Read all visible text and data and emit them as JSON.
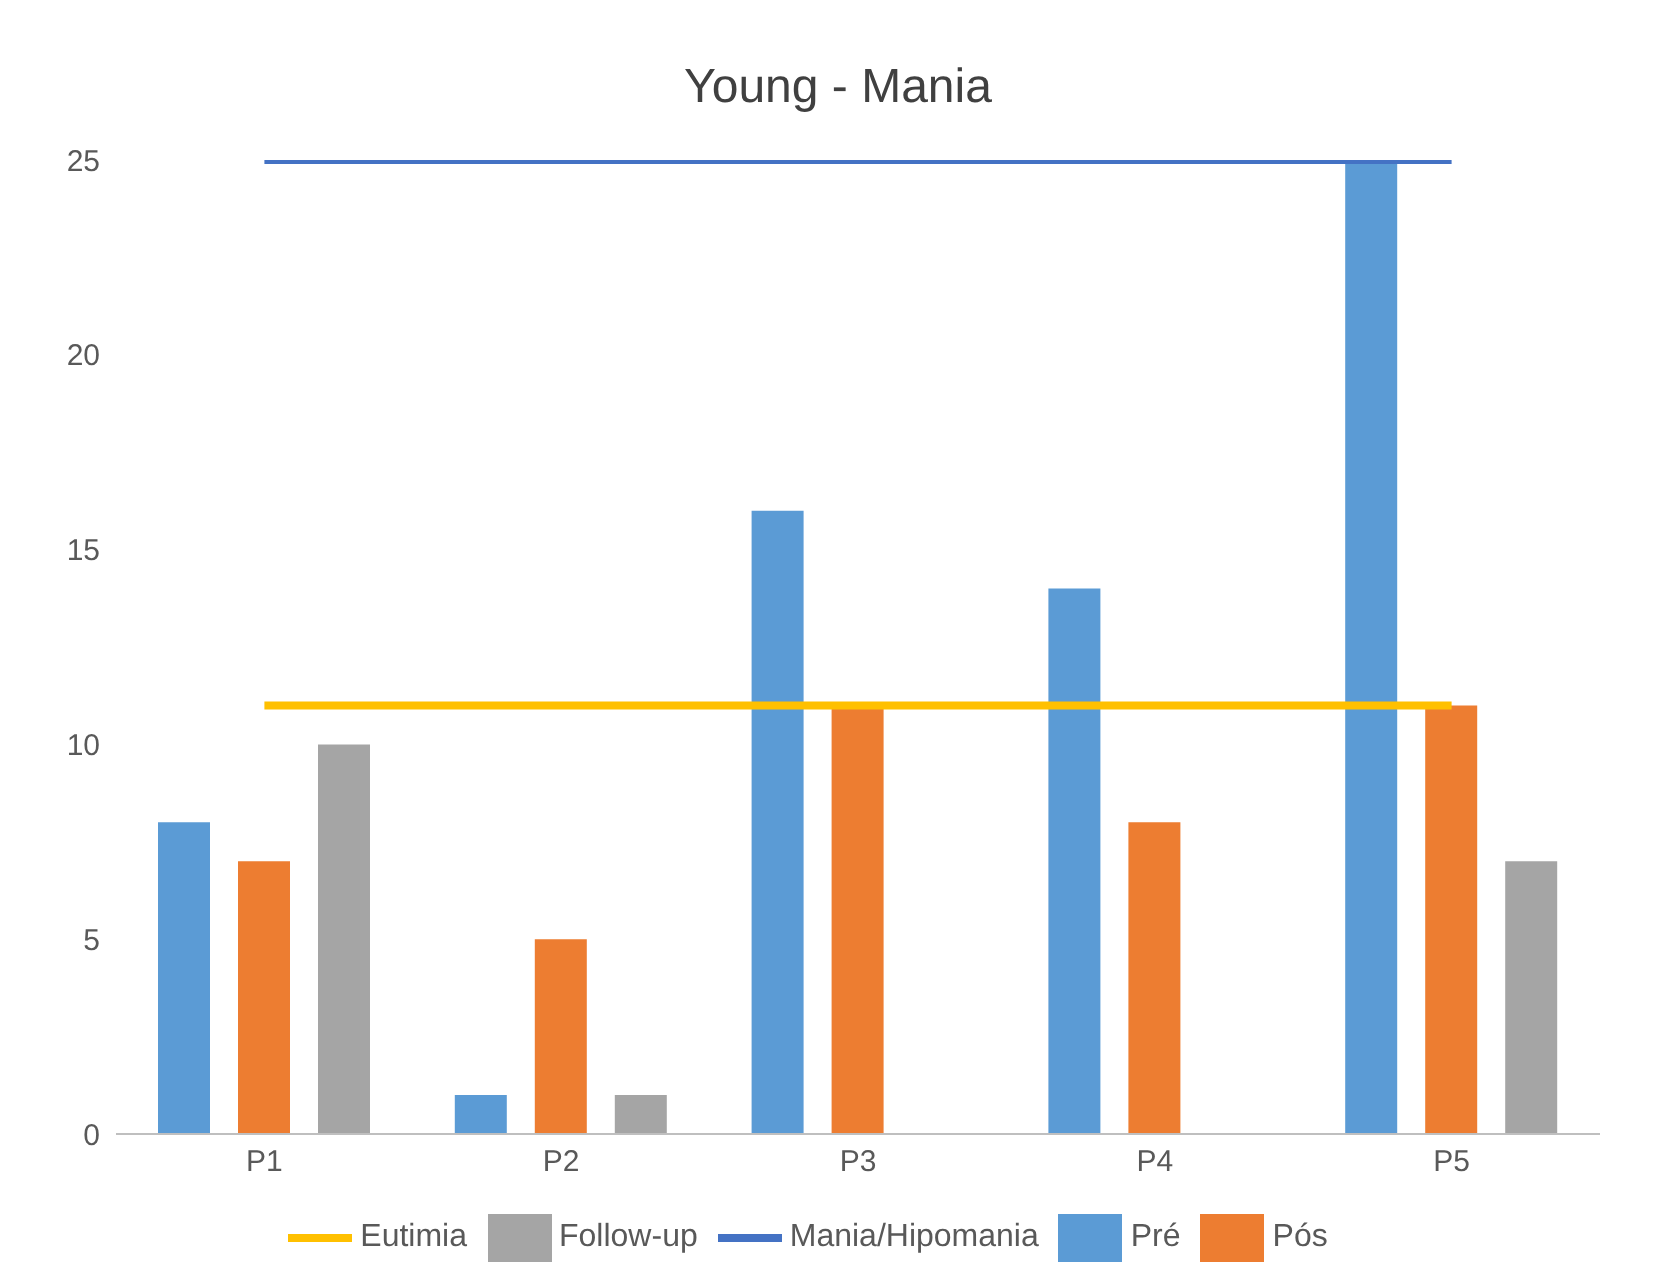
{
  "chart_data": {
    "type": "bar",
    "title": "Young - Mania",
    "categories": [
      "P1",
      "P2",
      "P3",
      "P4",
      "P5"
    ],
    "series": [
      {
        "name": "Pré",
        "color": "#5b9bd5",
        "values": [
          8,
          1,
          16,
          14,
          25
        ]
      },
      {
        "name": "Pós",
        "color": "#ed7d31",
        "values": [
          7,
          5,
          11,
          8,
          11
        ]
      },
      {
        "name": "Follow-up",
        "color": "#a5a5a5",
        "values": [
          10,
          1,
          null,
          null,
          7
        ]
      },
      {
        "name": "Eutimia",
        "type": "line",
        "color": "#ffc000",
        "values": [
          11,
          11,
          11,
          11,
          11
        ]
      },
      {
        "name": "Mania/Hipomania",
        "type": "line",
        "color": "#4472c4",
        "values": [
          25,
          25,
          25,
          25,
          25
        ]
      }
    ],
    "ylim": [
      0,
      25
    ],
    "yticks": [
      0,
      5,
      10,
      15,
      20,
      25
    ],
    "grid": false,
    "legend": "bottom",
    "marker": "none"
  }
}
